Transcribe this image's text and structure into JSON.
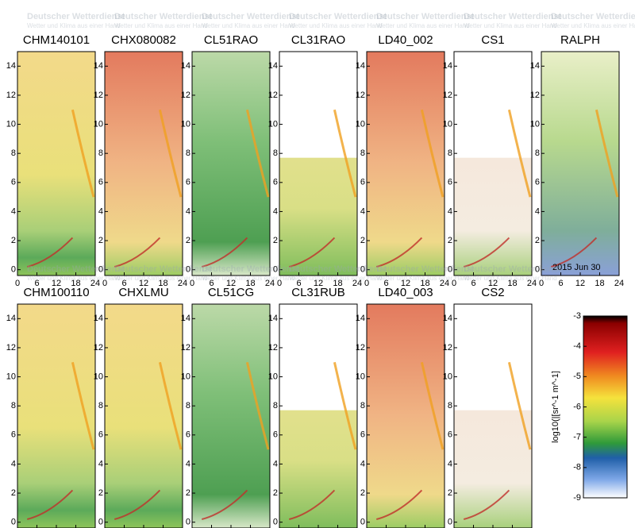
{
  "panels": [
    {
      "title": "CHM140101"
    },
    {
      "title": "CHX080082"
    },
    {
      "title": "CL51RAO"
    },
    {
      "title": "CL31RAO"
    },
    {
      "title": "LD40_002"
    },
    {
      "title": "CS1"
    },
    {
      "title": "RALPH"
    },
    {
      "title": "CHM100110"
    },
    {
      "title": "CHXLMU"
    },
    {
      "title": "CL51CG"
    },
    {
      "title": "CL31RUB"
    },
    {
      "title": "LD40_003"
    },
    {
      "title": "CS2"
    }
  ],
  "axes": {
    "xlim": [
      0,
      24
    ],
    "xticks": [
      0,
      6,
      12,
      18,
      24
    ],
    "ylim": [
      -0.4,
      15
    ],
    "yticks": [
      0,
      2,
      4,
      6,
      8,
      10,
      12,
      14
    ]
  },
  "colorbar": {
    "label": "log10(|[sr^-1  m^-1]",
    "lim": [
      -9,
      -3
    ],
    "ticks": [
      -3,
      -4,
      -5,
      -6,
      -7,
      -8,
      -9
    ]
  },
  "annotation": "2015  Jun  30",
  "watermark": {
    "title": "Deutscher Wetterdienst",
    "subtitle": "Wetter und Klima aus einer Hand"
  }
}
